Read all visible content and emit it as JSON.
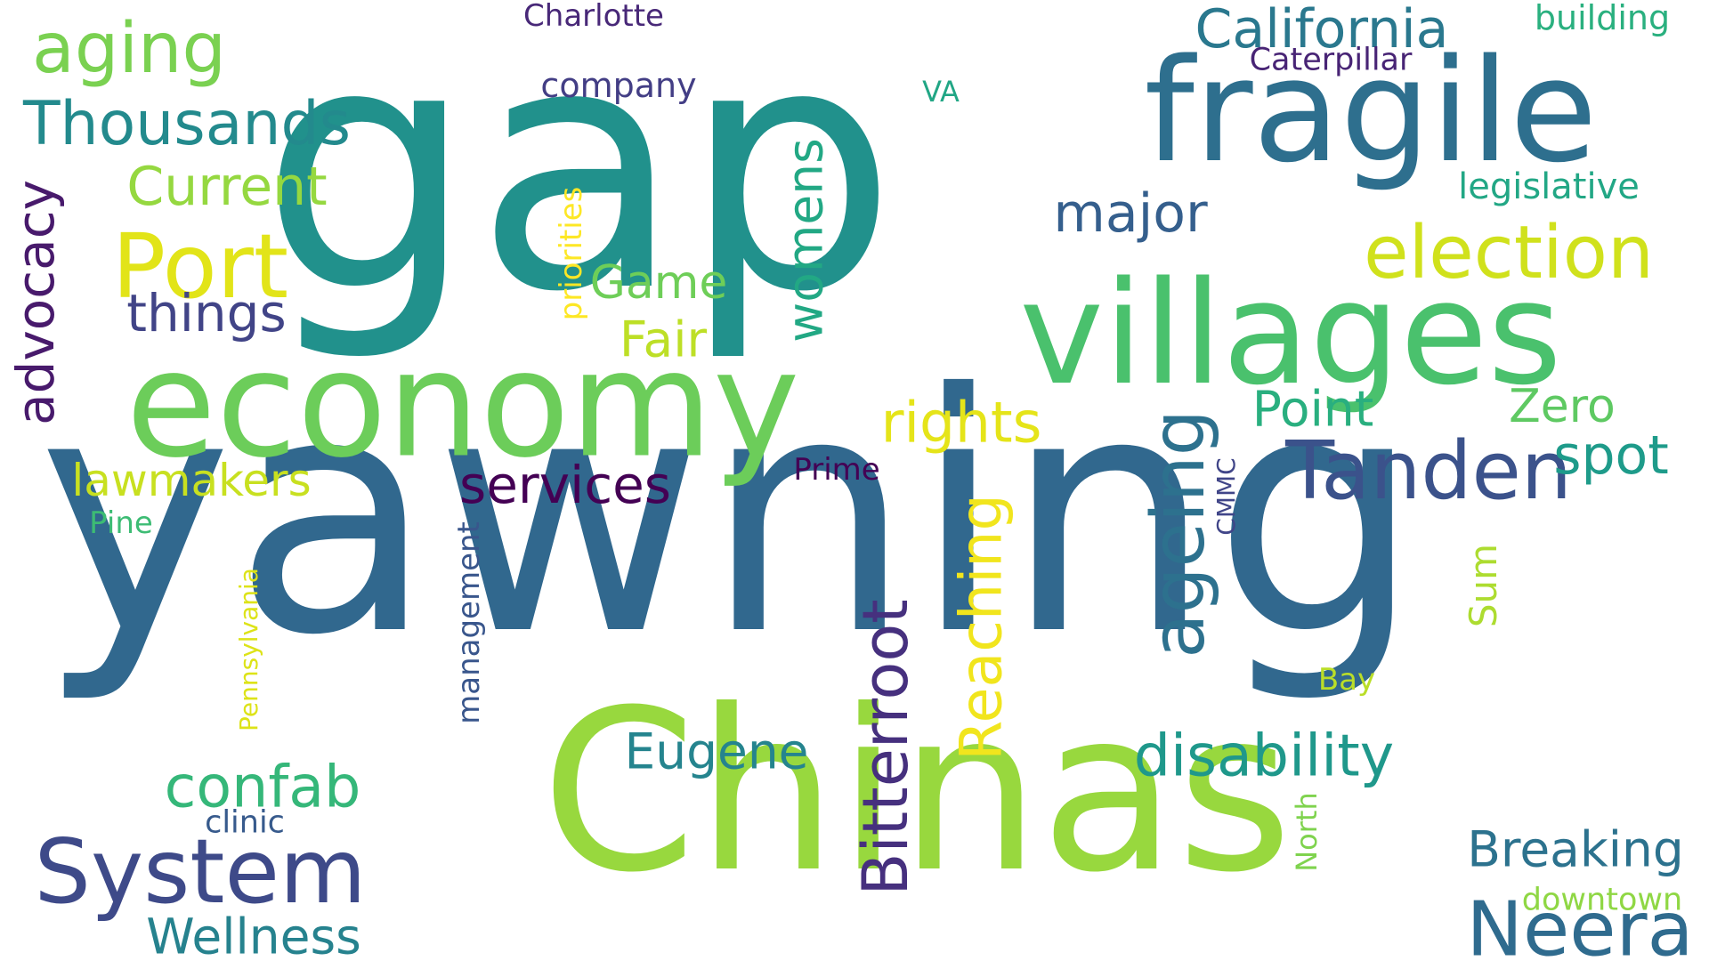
{
  "words": [
    {
      "text": "yawning",
      "color": "#31688e"
    },
    {
      "text": "gap",
      "color": "#21918c"
    },
    {
      "text": "Chinas",
      "color": "#98d83e"
    },
    {
      "text": "villages",
      "color": "#4ac16d"
    },
    {
      "text": "economy",
      "color": "#6ccd5a"
    },
    {
      "text": "fragile",
      "color": "#2e6f8e"
    },
    {
      "text": "Port",
      "color": "#e2e418"
    },
    {
      "text": "System",
      "color": "#3e4a89"
    },
    {
      "text": "Tanden",
      "color": "#3b528b"
    },
    {
      "text": "Neera",
      "color": "#2f6b8e"
    },
    {
      "text": "election",
      "color": "#d0e11c"
    },
    {
      "text": "Bitterroot",
      "color": "#46307e"
    },
    {
      "text": "ageing",
      "color": "#2d718e"
    },
    {
      "text": "aging",
      "color": "#7ad151"
    },
    {
      "text": "Thousands",
      "color": "#238a8d"
    },
    {
      "text": "California",
      "color": "#2a788e"
    },
    {
      "text": "disability",
      "color": "#1f988b"
    },
    {
      "text": "confab",
      "color": "#35b779"
    },
    {
      "text": "rights",
      "color": "#e5e419"
    },
    {
      "text": "Reaching",
      "color": "#f1e51d"
    },
    {
      "text": "advocacy",
      "color": "#481a6c"
    },
    {
      "text": "Current",
      "color": "#95d840"
    },
    {
      "text": "services",
      "color": "#440154"
    },
    {
      "text": "Wellness",
      "color": "#26828e"
    },
    {
      "text": "Breaking",
      "color": "#2c728e"
    },
    {
      "text": "Eugene",
      "color": "#25848e"
    },
    {
      "text": "things",
      "color": "#414487"
    },
    {
      "text": "womens",
      "color": "#22a884"
    },
    {
      "text": "major",
      "color": "#355f8d"
    },
    {
      "text": "Point",
      "color": "#29af7f"
    },
    {
      "text": "lawmakers",
      "color": "#c8e020"
    },
    {
      "text": "Fair",
      "color": "#bddf26"
    },
    {
      "text": "spot",
      "color": "#1e9b8a"
    },
    {
      "text": "Zero",
      "color": "#5ec962"
    },
    {
      "text": "Game",
      "color": "#6ece58"
    },
    {
      "text": "legislative",
      "color": "#22a785"
    },
    {
      "text": "Sum",
      "color": "#addc30"
    },
    {
      "text": "priorities",
      "color": "#fde725"
    },
    {
      "text": "management",
      "color": "#39568c"
    },
    {
      "text": "building",
      "color": "#2ab07f"
    },
    {
      "text": "company",
      "color": "#433e85"
    },
    {
      "text": "Caterpillar",
      "color": "#482475"
    },
    {
      "text": "Charlotte",
      "color": "#482878"
    },
    {
      "text": "Pennsylvania",
      "color": "#dde318"
    },
    {
      "text": "downtown",
      "color": "#8fd744"
    },
    {
      "text": "clinic",
      "color": "#375a8c"
    },
    {
      "text": "CMMC",
      "color": "#404588"
    },
    {
      "text": "Prime",
      "color": "#440154"
    },
    {
      "text": "Pine",
      "color": "#3dbc74"
    },
    {
      "text": "Bay",
      "color": "#bade28"
    },
    {
      "text": "VA",
      "color": "#21a685"
    },
    {
      "text": "North",
      "color": "#7fd34e"
    }
  ]
}
